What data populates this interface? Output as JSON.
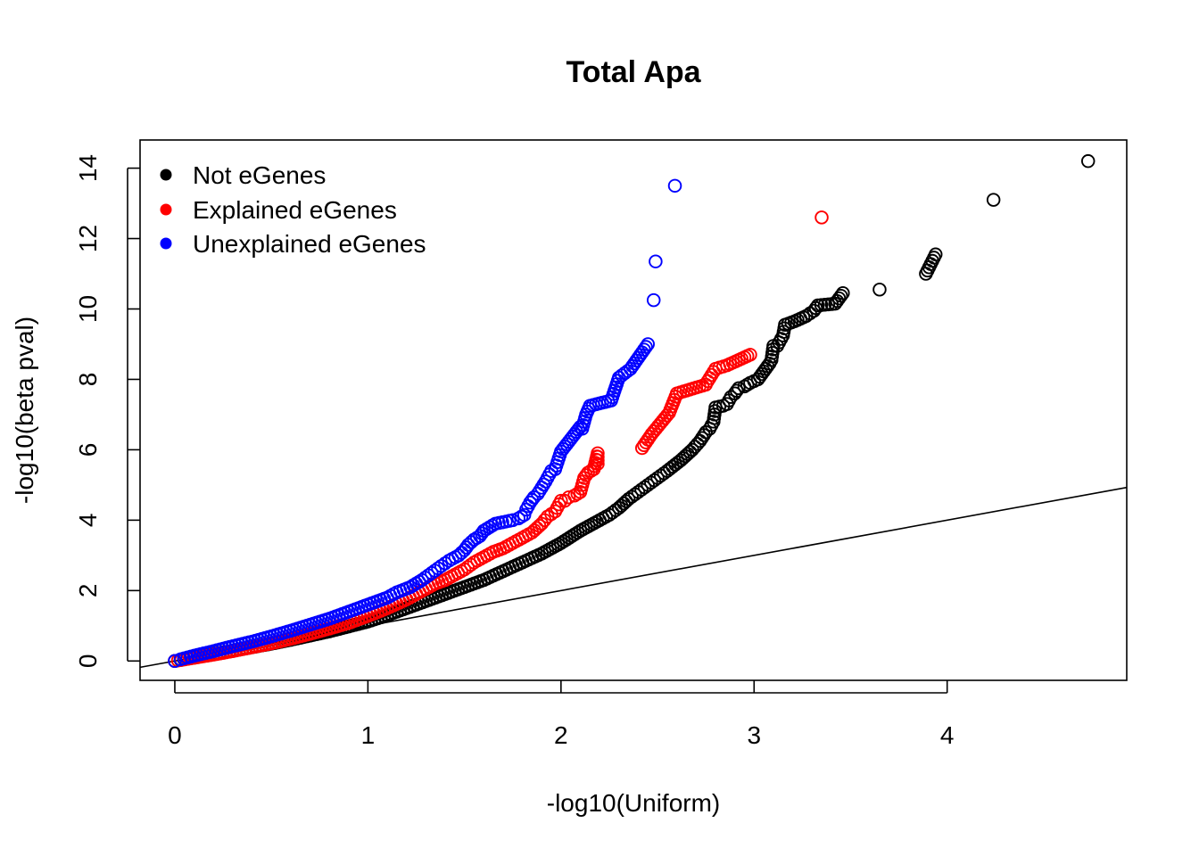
{
  "chart_data": {
    "type": "scatter",
    "title": "Total Apa",
    "xlabel": "-log10(Uniform)",
    "ylabel": "-log10(beta pval)",
    "xlim": [
      -0.18,
      4.93
    ],
    "ylim": [
      -0.55,
      14.8
    ],
    "x_ticks": [
      "0",
      "1",
      "2",
      "3",
      "4"
    ],
    "y_ticks": [
      "0",
      "2",
      "4",
      "6",
      "8",
      "10",
      "12",
      "14"
    ],
    "reference_line": {
      "intercept": 0,
      "slope": 1
    },
    "grid": false,
    "legend": {
      "position": "top-left",
      "entries": [
        "Not eGenes",
        "Explained eGenes",
        "Unexplained eGenes"
      ]
    },
    "colors": {
      "Not eGenes": "#000000",
      "Explained eGenes": "#ff0000",
      "Unexplained eGenes": "#0000ff",
      "line": "#000000"
    },
    "series": [
      {
        "name": "Not eGenes",
        "points": [
          [
            4.73,
            14.2
          ],
          [
            4.24,
            13.1
          ],
          [
            3.94,
            11.55
          ],
          [
            3.89,
            11.0
          ],
          [
            3.65,
            10.55
          ],
          [
            3.46,
            10.45
          ],
          [
            3.42,
            10.15
          ],
          [
            3.33,
            10.1
          ],
          [
            3.31,
            9.95
          ],
          [
            3.27,
            9.8
          ],
          [
            3.21,
            9.65
          ],
          [
            3.16,
            9.55
          ],
          [
            3.15,
            9.25
          ],
          [
            3.12,
            8.95
          ],
          [
            3.1,
            8.95
          ],
          [
            3.09,
            8.55
          ],
          [
            3.08,
            8.45
          ],
          [
            3.06,
            8.3
          ],
          [
            3.04,
            8.15
          ],
          [
            3.02,
            8.0
          ],
          [
            3.0,
            7.95
          ],
          [
            2.98,
            7.9
          ],
          [
            2.95,
            7.8
          ],
          [
            2.92,
            7.75
          ],
          [
            2.9,
            7.6
          ],
          [
            2.88,
            7.5
          ],
          [
            2.86,
            7.3
          ],
          [
            2.84,
            7.25
          ],
          [
            2.8,
            7.2
          ],
          [
            2.79,
            6.8
          ],
          [
            2.77,
            6.6
          ],
          [
            2.75,
            6.5
          ],
          [
            2.72,
            6.25
          ],
          [
            2.68,
            6.0
          ],
          [
            2.62,
            5.7
          ],
          [
            2.55,
            5.4
          ],
          [
            2.5,
            5.2
          ],
          [
            2.45,
            5.0
          ],
          [
            2.4,
            4.8
          ],
          [
            2.35,
            4.6
          ],
          [
            2.3,
            4.35
          ],
          [
            2.25,
            4.15
          ],
          [
            2.2,
            4.0
          ],
          [
            2.1,
            3.7
          ],
          [
            2.0,
            3.35
          ],
          [
            1.9,
            3.05
          ],
          [
            1.8,
            2.8
          ],
          [
            1.7,
            2.55
          ],
          [
            1.6,
            2.3
          ],
          [
            1.5,
            2.1
          ],
          [
            1.4,
            1.9
          ],
          [
            1.3,
            1.7
          ],
          [
            1.2,
            1.5
          ],
          [
            1.1,
            1.3
          ],
          [
            1.0,
            1.12
          ],
          [
            0.9,
            0.98
          ],
          [
            0.8,
            0.84
          ],
          [
            0.7,
            0.72
          ],
          [
            0.6,
            0.6
          ],
          [
            0.5,
            0.49
          ],
          [
            0.4,
            0.39
          ],
          [
            0.3,
            0.29
          ],
          [
            0.2,
            0.19
          ],
          [
            0.1,
            0.1
          ],
          [
            0.03,
            0.03
          ],
          [
            0.0,
            0.0
          ]
        ]
      },
      {
        "name": "Explained eGenes",
        "points": [
          [
            3.35,
            12.6
          ],
          [
            2.98,
            8.7
          ],
          [
            2.86,
            8.4
          ],
          [
            2.8,
            8.3
          ],
          [
            2.76,
            7.95
          ],
          [
            2.75,
            7.85
          ],
          [
            2.6,
            7.6
          ],
          [
            2.56,
            7.05
          ],
          [
            2.47,
            6.45
          ],
          [
            2.42,
            6.05
          ],
          [
            2.19,
            5.9
          ],
          [
            2.19,
            5.6
          ],
          [
            2.17,
            5.45
          ],
          [
            2.14,
            5.35
          ],
          [
            2.12,
            5.2
          ],
          [
            2.1,
            4.8
          ],
          [
            2.07,
            4.7
          ],
          [
            2.04,
            4.65
          ],
          [
            2.02,
            4.55
          ],
          [
            2.0,
            4.55
          ],
          [
            1.97,
            4.25
          ],
          [
            1.93,
            4.1
          ],
          [
            1.9,
            3.9
          ],
          [
            1.85,
            3.65
          ],
          [
            1.8,
            3.5
          ],
          [
            1.75,
            3.35
          ],
          [
            1.7,
            3.2
          ],
          [
            1.65,
            3.1
          ],
          [
            1.6,
            2.95
          ],
          [
            1.55,
            2.8
          ],
          [
            1.5,
            2.6
          ],
          [
            1.45,
            2.45
          ],
          [
            1.4,
            2.3
          ],
          [
            1.35,
            2.2
          ],
          [
            1.3,
            2.05
          ],
          [
            1.25,
            1.9
          ],
          [
            1.2,
            1.75
          ],
          [
            1.1,
            1.5
          ],
          [
            1.0,
            1.28
          ],
          [
            0.9,
            1.08
          ],
          [
            0.8,
            0.92
          ],
          [
            0.7,
            0.77
          ],
          [
            0.6,
            0.63
          ],
          [
            0.5,
            0.5
          ],
          [
            0.4,
            0.39
          ],
          [
            0.3,
            0.28
          ],
          [
            0.2,
            0.18
          ],
          [
            0.1,
            0.09
          ],
          [
            0.0,
            0.0
          ]
        ]
      },
      {
        "name": "Unexplained eGenes",
        "points": [
          [
            2.59,
            13.5
          ],
          [
            2.49,
            11.35
          ],
          [
            2.48,
            10.25
          ],
          [
            2.45,
            9.0
          ],
          [
            2.36,
            8.3
          ],
          [
            2.3,
            8.05
          ],
          [
            2.26,
            7.4
          ],
          [
            2.15,
            7.25
          ],
          [
            2.13,
            7.0
          ],
          [
            2.1,
            6.65
          ],
          [
            2.11,
            6.6
          ],
          [
            2.0,
            5.95
          ],
          [
            1.97,
            5.45
          ],
          [
            1.95,
            5.4
          ],
          [
            1.92,
            5.1
          ],
          [
            1.88,
            4.75
          ],
          [
            1.86,
            4.65
          ],
          [
            1.84,
            4.5
          ],
          [
            1.82,
            4.3
          ],
          [
            1.81,
            4.15
          ],
          [
            1.78,
            4.05
          ],
          [
            1.75,
            4.0
          ],
          [
            1.66,
            3.9
          ],
          [
            1.63,
            3.8
          ],
          [
            1.6,
            3.7
          ],
          [
            1.58,
            3.55
          ],
          [
            1.55,
            3.45
          ],
          [
            1.52,
            3.3
          ],
          [
            1.5,
            3.15
          ],
          [
            1.47,
            3.0
          ],
          [
            1.42,
            2.85
          ],
          [
            1.38,
            2.7
          ],
          [
            1.33,
            2.5
          ],
          [
            1.28,
            2.3
          ],
          [
            1.22,
            2.1
          ],
          [
            1.15,
            1.95
          ],
          [
            1.1,
            1.8
          ],
          [
            1.0,
            1.6
          ],
          [
            0.9,
            1.4
          ],
          [
            0.8,
            1.2
          ],
          [
            0.7,
            1.03
          ],
          [
            0.6,
            0.86
          ],
          [
            0.5,
            0.7
          ],
          [
            0.4,
            0.55
          ],
          [
            0.3,
            0.42
          ],
          [
            0.2,
            0.28
          ],
          [
            0.1,
            0.15
          ],
          [
            0.03,
            0.05
          ],
          [
            0.0,
            0.0
          ]
        ]
      }
    ]
  }
}
